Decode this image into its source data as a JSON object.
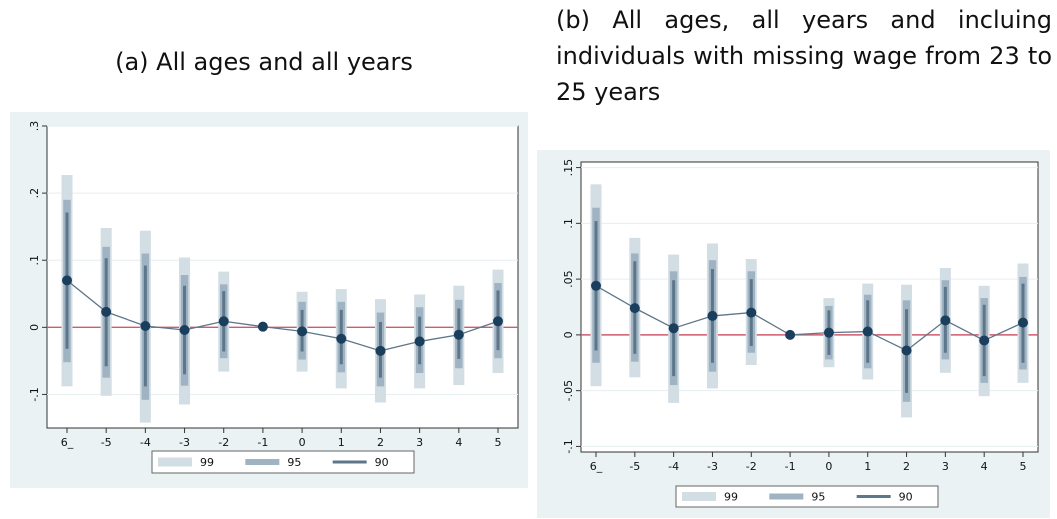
{
  "captions": {
    "a": "(a) All ages and all years",
    "b": "(b) All ages, all years and incluing individuals with missing wage from 23 to 25 years"
  },
  "colors": {
    "panel_bg": "#eaf2f3",
    "plot_bg": "#ffffff",
    "ci99": "#d3dee4",
    "ci95": "#9fb3c2",
    "ci90": "#5d7689",
    "line": "#5d7689",
    "point": "#1a3e5c",
    "zero_line": "#d05a6e",
    "grid": "#e6eef0"
  },
  "chart_data": [
    {
      "type": "scatter",
      "categories": [
        "6_",
        "-5",
        "-4",
        "-3",
        "-2",
        "-1",
        "0",
        "1",
        "2",
        "3",
        "4",
        "5"
      ],
      "ylim": [
        -0.15,
        0.3
      ],
      "yticks": [
        -0.1,
        0,
        0.1,
        0.2,
        0.3
      ],
      "ytick_labels": [
        "-.1",
        "0",
        ".1",
        ".2",
        ".3"
      ],
      "grid": true,
      "legend_position": "bottom",
      "point_estimates": [
        0.07,
        0.023,
        0.002,
        -0.004,
        0.009,
        0.001,
        -0.006,
        -0.017,
        -0.035,
        -0.021,
        -0.011,
        0.009
      ],
      "series": [
        {
          "name": "99",
          "lower": [
            -0.088,
            -0.102,
            -0.142,
            -0.115,
            -0.066,
            0.001,
            -0.066,
            -0.091,
            -0.112,
            -0.091,
            -0.086,
            -0.068
          ],
          "upper": [
            0.227,
            0.148,
            0.144,
            0.104,
            0.083,
            0.001,
            0.053,
            0.057,
            0.042,
            0.049,
            0.062,
            0.086
          ]
        },
        {
          "name": "95",
          "lower": [
            -0.052,
            -0.075,
            -0.108,
            -0.087,
            -0.046,
            0.001,
            -0.048,
            -0.067,
            -0.088,
            -0.068,
            -0.061,
            -0.046
          ],
          "upper": [
            0.19,
            0.12,
            0.11,
            0.078,
            0.064,
            0.001,
            0.038,
            0.038,
            0.022,
            0.03,
            0.041,
            0.066
          ]
        },
        {
          "name": "90",
          "lower": [
            -0.032,
            -0.058,
            -0.088,
            -0.07,
            -0.036,
            0.001,
            -0.036,
            -0.055,
            -0.075,
            -0.055,
            -0.047,
            -0.034
          ],
          "upper": [
            0.171,
            0.103,
            0.092,
            0.062,
            0.054,
            0.001,
            0.026,
            0.026,
            0.008,
            0.016,
            0.028,
            0.055
          ]
        }
      ]
    },
    {
      "type": "scatter",
      "categories": [
        "6_",
        "-5",
        "-4",
        "-3",
        "-2",
        "-1",
        "0",
        "1",
        "2",
        "3",
        "4",
        "5"
      ],
      "ylim": [
        -0.105,
        0.155
      ],
      "yticks": [
        -0.1,
        -0.05,
        0,
        0.05,
        0.1,
        0.15
      ],
      "ytick_labels": [
        "-.1",
        "-.05",
        "0",
        ".05",
        ".1",
        ".15"
      ],
      "grid": true,
      "legend_position": "bottom",
      "point_estimates": [
        0.044,
        0.024,
        0.006,
        0.017,
        0.02,
        0.0,
        0.002,
        0.003,
        -0.014,
        0.013,
        -0.005,
        0.011
      ],
      "series": [
        {
          "name": "99",
          "lower": [
            -0.046,
            -0.038,
            -0.061,
            -0.048,
            -0.027,
            0.0,
            -0.029,
            -0.04,
            -0.074,
            -0.034,
            -0.055,
            -0.043
          ],
          "upper": [
            0.135,
            0.087,
            0.072,
            0.082,
            0.068,
            0.0,
            0.033,
            0.046,
            0.045,
            0.06,
            0.044,
            0.064
          ]
        },
        {
          "name": "95",
          "lower": [
            -0.025,
            -0.024,
            -0.045,
            -0.033,
            -0.016,
            0.0,
            -0.022,
            -0.03,
            -0.06,
            -0.022,
            -0.043,
            -0.031
          ],
          "upper": [
            0.114,
            0.073,
            0.057,
            0.067,
            0.057,
            0.0,
            0.026,
            0.036,
            0.031,
            0.049,
            0.033,
            0.052
          ]
        },
        {
          "name": "90",
          "lower": [
            -0.014,
            -0.017,
            -0.037,
            -0.025,
            -0.01,
            0.0,
            -0.018,
            -0.025,
            -0.052,
            -0.016,
            -0.037,
            -0.025
          ],
          "upper": [
            0.102,
            0.066,
            0.049,
            0.059,
            0.05,
            0.0,
            0.022,
            0.031,
            0.023,
            0.043,
            0.027,
            0.046
          ]
        }
      ]
    }
  ]
}
